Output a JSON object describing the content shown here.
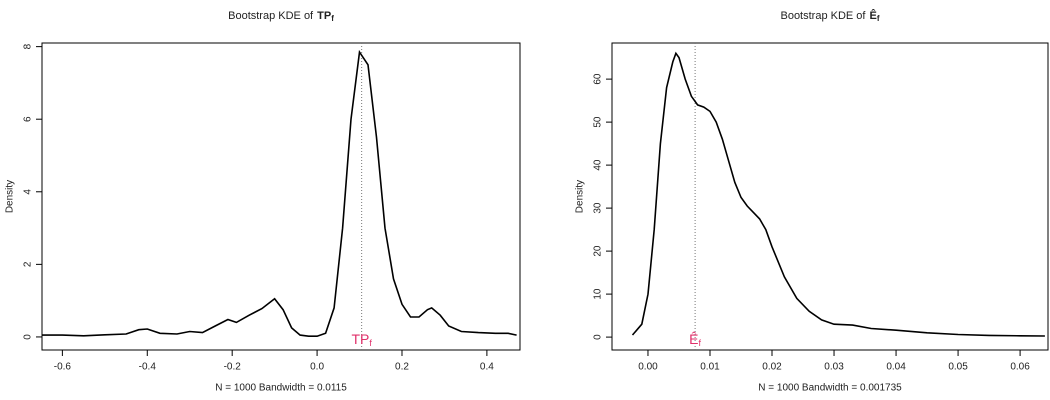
{
  "chart_data": [
    {
      "type": "line",
      "title": {
        "text": "Bootstrap KDE of",
        "symbol": "TP",
        "subscript": "f"
      },
      "xlabel": "N = 1000   Bandwidth = 0.0115",
      "ylabel": "Density",
      "x": [
        -0.648,
        -0.6,
        -0.55,
        -0.5,
        -0.45,
        -0.42,
        -0.4,
        -0.37,
        -0.33,
        -0.3,
        -0.27,
        -0.24,
        -0.21,
        -0.19,
        -0.16,
        -0.13,
        -0.1,
        -0.08,
        -0.06,
        -0.04,
        -0.02,
        0.0,
        0.02,
        0.04,
        0.06,
        0.08,
        0.1,
        0.12,
        0.14,
        0.16,
        0.18,
        0.2,
        0.22,
        0.24,
        0.26,
        0.27,
        0.29,
        0.31,
        0.34,
        0.38,
        0.42,
        0.45,
        0.47
      ],
      "values": [
        0.05,
        0.05,
        0.03,
        0.06,
        0.08,
        0.2,
        0.22,
        0.1,
        0.08,
        0.15,
        0.12,
        0.3,
        0.48,
        0.4,
        0.6,
        0.78,
        1.05,
        0.75,
        0.25,
        0.05,
        0.02,
        0.02,
        0.1,
        0.8,
        3.0,
        6.0,
        7.85,
        7.5,
        5.5,
        3.0,
        1.6,
        0.9,
        0.55,
        0.55,
        0.75,
        0.8,
        0.6,
        0.3,
        0.15,
        0.12,
        0.1,
        0.1,
        0.05
      ],
      "color": "#000000",
      "xlim": [
        -0.648,
        0.478
      ],
      "ylim": [
        -0.36,
        8.1
      ],
      "xticks": [
        -0.6,
        -0.4,
        -0.2,
        {
          "value": 0,
          "label": "0.0"
        },
        0.2,
        0.4
      ],
      "yticks": [
        0,
        2,
        4,
        6,
        8
      ],
      "vline": {
        "x": 0.105,
        "label": "TP",
        "subscript": "f",
        "color": "#e0306a"
      }
    },
    {
      "type": "line",
      "title": {
        "text": "Bootstrap KDE of",
        "symbol": "Ê",
        "subscript": "f"
      },
      "xlabel": "N = 1000   Bandwidth = 0.001735",
      "ylabel": "Density",
      "x": [
        -0.0025,
        -0.001,
        0.0,
        0.001,
        0.002,
        0.003,
        0.004,
        0.0045,
        0.005,
        0.006,
        0.007,
        0.008,
        0.009,
        0.01,
        0.011,
        0.012,
        0.013,
        0.014,
        0.015,
        0.016,
        0.017,
        0.018,
        0.019,
        0.02,
        0.022,
        0.024,
        0.026,
        0.028,
        0.03,
        0.033,
        0.036,
        0.04,
        0.045,
        0.05,
        0.055,
        0.06,
        0.064
      ],
      "values": [
        0.5,
        3,
        10,
        25,
        45,
        58,
        64,
        66,
        65,
        60,
        56,
        54,
        53.5,
        52.5,
        50,
        46,
        41,
        36,
        32.5,
        30.5,
        29,
        27.5,
        25,
        21,
        14,
        9,
        6,
        4,
        3,
        2.8,
        2.0,
        1.6,
        1.0,
        0.6,
        0.4,
        0.3,
        0.25
      ],
      "color": "#000000",
      "xlim": [
        -0.0058,
        0.0645
      ],
      "ylim": [
        -3,
        68.4
      ],
      "xticks": [
        {
          "value": 0,
          "label": "0.00"
        },
        0.01,
        0.02,
        0.03,
        0.04,
        0.05,
        0.06
      ],
      "yticks": [
        0,
        10,
        20,
        30,
        40,
        50,
        60
      ],
      "vline": {
        "x": 0.0076,
        "label": "Ê",
        "subscript": "f",
        "color": "#e0306a"
      }
    }
  ]
}
